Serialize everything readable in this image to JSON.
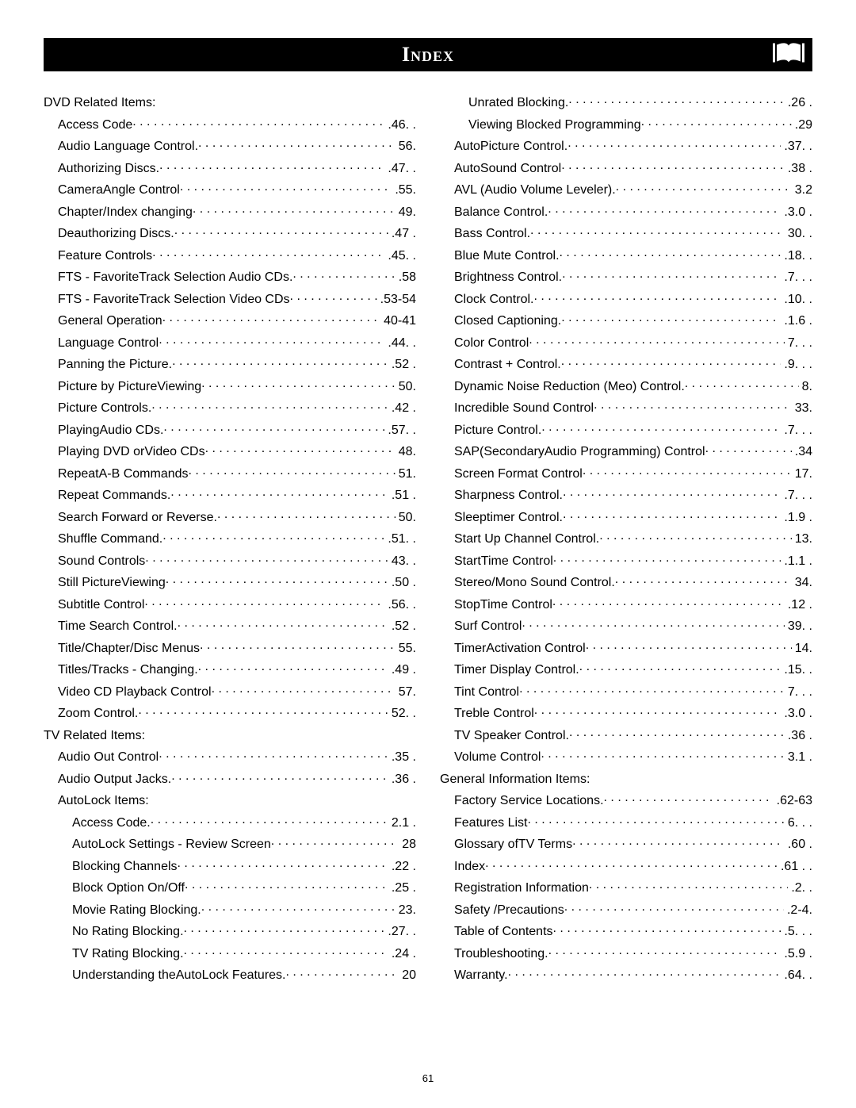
{
  "header": {
    "title": "Index"
  },
  "page_footer": "61",
  "book_icon_color": "#000000",
  "left_column": [
    {
      "label": "DVD Related Items:",
      "page": "",
      "indent": 0,
      "no_dots": true
    },
    {
      "label": "Access Code",
      "page": ".46. .",
      "indent": 1
    },
    {
      "label": "Audio Language Control.",
      "page": "56.",
      "indent": 1
    },
    {
      "label": "Authorizing Discs.",
      "page": ".47. .",
      "indent": 1
    },
    {
      "label": "CameraAngle Control",
      "page": ".55.",
      "indent": 1
    },
    {
      "label": "Chapter/Index changing",
      "page": "49.",
      "indent": 1
    },
    {
      "label": "Deauthorizing Discs.",
      "page": ".47 .",
      "indent": 1
    },
    {
      "label": "Feature Controls",
      "page": ".45. .",
      "indent": 1
    },
    {
      "label": "FTS - FavoriteTrack Selection Audio CDs.",
      "page": ".58",
      "indent": 1
    },
    {
      "label": "FTS - FavoriteTrack Selection Video CDs",
      "page": ".53-54",
      "indent": 1
    },
    {
      "label": "General Operation",
      "page": "40-41",
      "indent": 1
    },
    {
      "label": "Language Control",
      "page": ".44. .",
      "indent": 1
    },
    {
      "label": "Panning the Picture.",
      "page": ".52 .",
      "indent": 1
    },
    {
      "label": "Picture by PictureViewing",
      "page": "50.",
      "indent": 1
    },
    {
      "label": "Picture Controls.",
      "page": ".42 .",
      "indent": 1
    },
    {
      "label": "PlayingAudio CDs.",
      "page": ".57. .",
      "indent": 1
    },
    {
      "label": "Playing DVD orVideo CDs",
      "page": "48.",
      "indent": 1
    },
    {
      "label": "RepeatA-B Commands",
      "page": "51.",
      "indent": 1
    },
    {
      "label": "Repeat Commands.",
      "page": ".51 .",
      "indent": 1
    },
    {
      "label": "Search Forward or Reverse.",
      "page": "50.",
      "indent": 1
    },
    {
      "label": "Shuffle Command.",
      "page": ".51. .",
      "indent": 1
    },
    {
      "label": "Sound Controls",
      "page": "43. .",
      "indent": 1
    },
    {
      "label": "Still PictureViewing",
      "page": ".50 .",
      "indent": 1
    },
    {
      "label": "Subtitle Control",
      "page": ".56. .",
      "indent": 1
    },
    {
      "label": "Time Search Control.",
      "page": ".52 .",
      "indent": 1
    },
    {
      "label": "Title/Chapter/Disc Menus",
      "page": "55.",
      "indent": 1
    },
    {
      "label": "Titles/Tracks - Changing.",
      "page": ".49 .",
      "indent": 1
    },
    {
      "label": "Video CD Playback Control",
      "page": "57.",
      "indent": 1
    },
    {
      "label": "Zoom Control.",
      "page": "52. .",
      "indent": 1
    },
    {
      "label": "TV Related Items:",
      "page": "",
      "indent": 0,
      "no_dots": true
    },
    {
      "label": "Audio Out Control",
      "page": ".35 .",
      "indent": 1
    },
    {
      "label": "Audio Output Jacks.",
      "page": ".36 .",
      "indent": 1
    },
    {
      "label": "AutoLock Items:",
      "page": "",
      "indent": 1,
      "no_dots": true
    },
    {
      "label": "Access Code.",
      "page": "2.1 .",
      "indent": 2
    },
    {
      "label": "AutoLock Settings - Review Screen",
      "page": "28",
      "indent": 2
    },
    {
      "label": "Blocking Channels",
      "page": ".22 .",
      "indent": 2
    },
    {
      "label": "Block Option On/Off",
      "page": ".25 .",
      "indent": 2
    },
    {
      "label": "Movie Rating Blocking.",
      "page": "23.",
      "indent": 2
    },
    {
      "label": "No Rating Blocking.",
      "page": ".27. .",
      "indent": 2
    },
    {
      "label": "TV Rating Blocking.",
      "page": ".24 .",
      "indent": 2
    },
    {
      "label": "Understanding theAutoLock Features.",
      "page": "20",
      "indent": 2
    }
  ],
  "right_column": [
    {
      "label": "Unrated Blocking.",
      "page": ".26 .",
      "indent": 2
    },
    {
      "label": "Viewing Blocked Programming",
      "page": ".29",
      "indent": 2
    },
    {
      "label": "AutoPicture Control.",
      "page": ".37. .",
      "indent": 1
    },
    {
      "label": "AutoSound Control",
      "page": ".38 .",
      "indent": 1
    },
    {
      "label": "AVL (Audio Volume Leveler).",
      "page": "3.2",
      "indent": 1
    },
    {
      "label": "Balance Control.",
      "page": ".3.0 .",
      "indent": 1
    },
    {
      "label": "Bass Control.",
      "page": "30. .",
      "indent": 1
    },
    {
      "label": "Blue Mute Control.",
      "page": ".18. .",
      "indent": 1
    },
    {
      "label": "Brightness Control.",
      "page": ".7. . .",
      "indent": 1
    },
    {
      "label": "Clock Control.",
      "page": ".10. .",
      "indent": 1
    },
    {
      "label": "Closed Captioning.",
      "page": ".1.6 .",
      "indent": 1
    },
    {
      "label": "Color Control",
      "page": "7. . .",
      "indent": 1
    },
    {
      "label": "Contrast + Control.",
      "page": ".9. . .",
      "indent": 1
    },
    {
      "label": "Dynamic Noise Reduction (Meo) Control.",
      "page": "8.",
      "indent": 1
    },
    {
      "label": "Incredible Sound Control",
      "page": "33.",
      "indent": 1
    },
    {
      "label": "Picture Control.",
      "page": ".7. . .",
      "indent": 1
    },
    {
      "label": "SAP(SecondaryAudio Programming) Control",
      "page": ".34",
      "indent": 1
    },
    {
      "label": "Screen Format Control",
      "page": "17.",
      "indent": 1
    },
    {
      "label": "Sharpness Control.",
      "page": ".7. . .",
      "indent": 1
    },
    {
      "label": "Sleeptimer Control.",
      "page": ".1.9 .",
      "indent": 1
    },
    {
      "label": "Start Up Channel Control.",
      "page": "13.",
      "indent": 1
    },
    {
      "label": "StartTime Control",
      "page": ".1.1 .",
      "indent": 1
    },
    {
      "label": "Stereo/Mono Sound Control.",
      "page": "34.",
      "indent": 1
    },
    {
      "label": "StopTime Control",
      "page": ".12 .",
      "indent": 1
    },
    {
      "label": "Surf Control",
      "page": "39. .",
      "indent": 1
    },
    {
      "label": "TimerActivation Control",
      "page": "14.",
      "indent": 1
    },
    {
      "label": "Timer Display Control.",
      "page": ".15. .",
      "indent": 1
    },
    {
      "label": "Tint Control",
      "page": "7. . .",
      "indent": 1
    },
    {
      "label": "Treble Control",
      "page": ".3.0 .",
      "indent": 1
    },
    {
      "label": "TV Speaker Control.",
      "page": ".36 .",
      "indent": 1
    },
    {
      "label": "Volume Control",
      "page": "3.1 .",
      "indent": 1
    },
    {
      "label": "General Information Items:",
      "page": "",
      "indent": 0,
      "no_dots": true
    },
    {
      "label": "Factory Service Locations.",
      "page": ".62-63",
      "indent": 1
    },
    {
      "label": "Features List",
      "page": "6. . .",
      "indent": 1
    },
    {
      "label": "Glossary ofTV Terms",
      "page": ".60 .",
      "indent": 1
    },
    {
      "label": "Index",
      "page": ".61  . .",
      "indent": 1
    },
    {
      "label": "Registration Information",
      "page": ".2. .",
      "indent": 1
    },
    {
      "label": "Safety /Precautions",
      "page": ".2-4.",
      "indent": 1
    },
    {
      "label": "Table of Contents",
      "page": ".5. . .",
      "indent": 1
    },
    {
      "label": "Troubleshooting.",
      "page": ".5.9 .",
      "indent": 1
    },
    {
      "label": "Warranty.",
      "page": ".64. .",
      "indent": 1
    }
  ]
}
